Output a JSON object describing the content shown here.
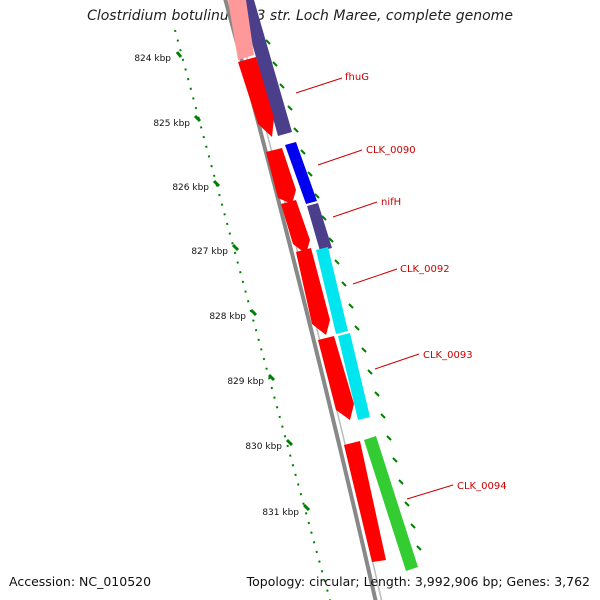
{
  "title": "Clostridium botulinum A3 str. Loch Maree, complete genome",
  "footer": {
    "accession": "Accession: NC_010520",
    "summary": "Topology: circular; Length: 3,992,906 bp; Genes: 3,762"
  },
  "colors": {
    "cds_forward": "#ff0000",
    "backbone": "#888888",
    "ruler": "#008000",
    "label": "#cc0000",
    "cog_navy": "#4b3f8c",
    "cog_blue": "#0000ee",
    "cog_cyan": "#00e5ee",
    "cog_green": "#33cc33"
  },
  "ruler": {
    "ticks": [
      "824 kbp",
      "825 kbp",
      "826 kbp",
      "827 kbp",
      "828 kbp",
      "829 kbp",
      "830 kbp",
      "831 kbp"
    ]
  },
  "genes": [
    {
      "label": "fhuG"
    },
    {
      "label": "CLK_0090"
    },
    {
      "label": "nifH"
    },
    {
      "label": "CLK_0092"
    },
    {
      "label": "CLK_0093"
    },
    {
      "label": "CLK_0094"
    }
  ]
}
